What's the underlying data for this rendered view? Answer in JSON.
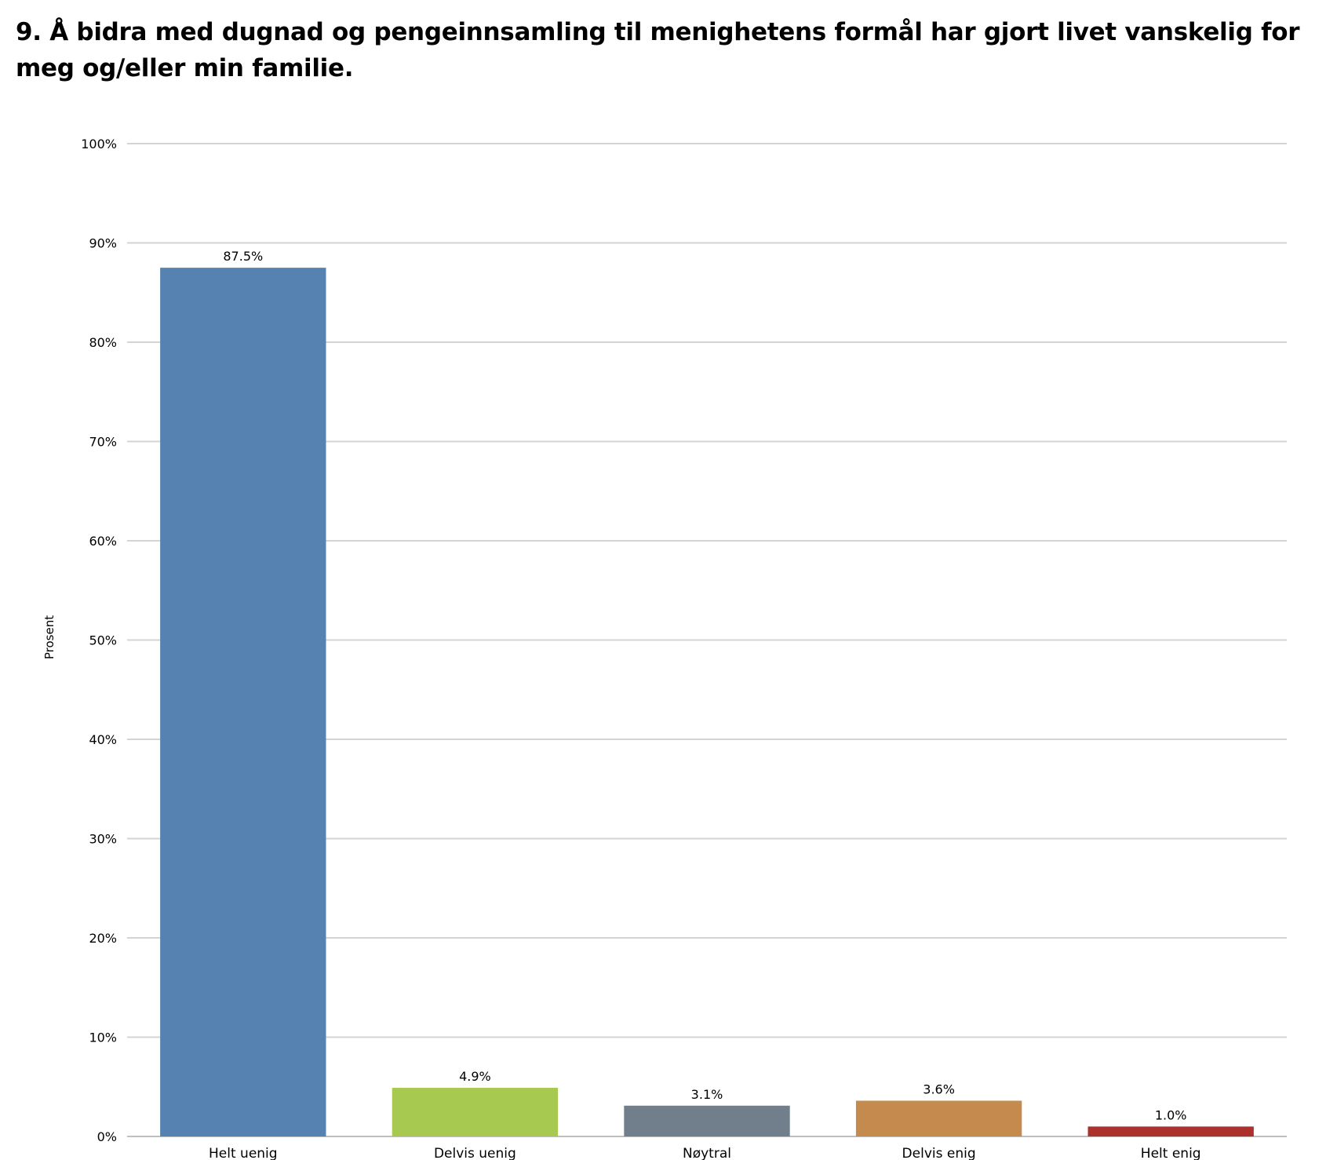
{
  "title": "9. Å bidra med dugnad og pengeinnsamling til menighetens formål har gjort livet vanskelig for meg og/eller min familie.",
  "chart_data": {
    "type": "bar",
    "title": "9. Å bidra med dugnad og pengeinnsamling til menighetens formål har gjort livet vanskelig for meg og/eller min familie.",
    "xlabel": "",
    "ylabel": "Prosent",
    "ylim": [
      0,
      100
    ],
    "yticks": [
      "0%",
      "10%",
      "20%",
      "30%",
      "40%",
      "50%",
      "60%",
      "70%",
      "80%",
      "90%",
      "100%"
    ],
    "grid": true,
    "legend": "none",
    "categories": [
      "Helt uenig",
      "Delvis uenig",
      "Nøytral",
      "Delvis enig",
      "Helt enig"
    ],
    "values": [
      87.5,
      4.9,
      3.1,
      3.6,
      1.0
    ],
    "data_labels": [
      "87.5%",
      "4.9%",
      "3.1%",
      "3.6%",
      "1.0%"
    ],
    "colors": [
      "#5582b1",
      "#a7c94f",
      "#717f8c",
      "#c58a4d",
      "#ac312c"
    ]
  }
}
